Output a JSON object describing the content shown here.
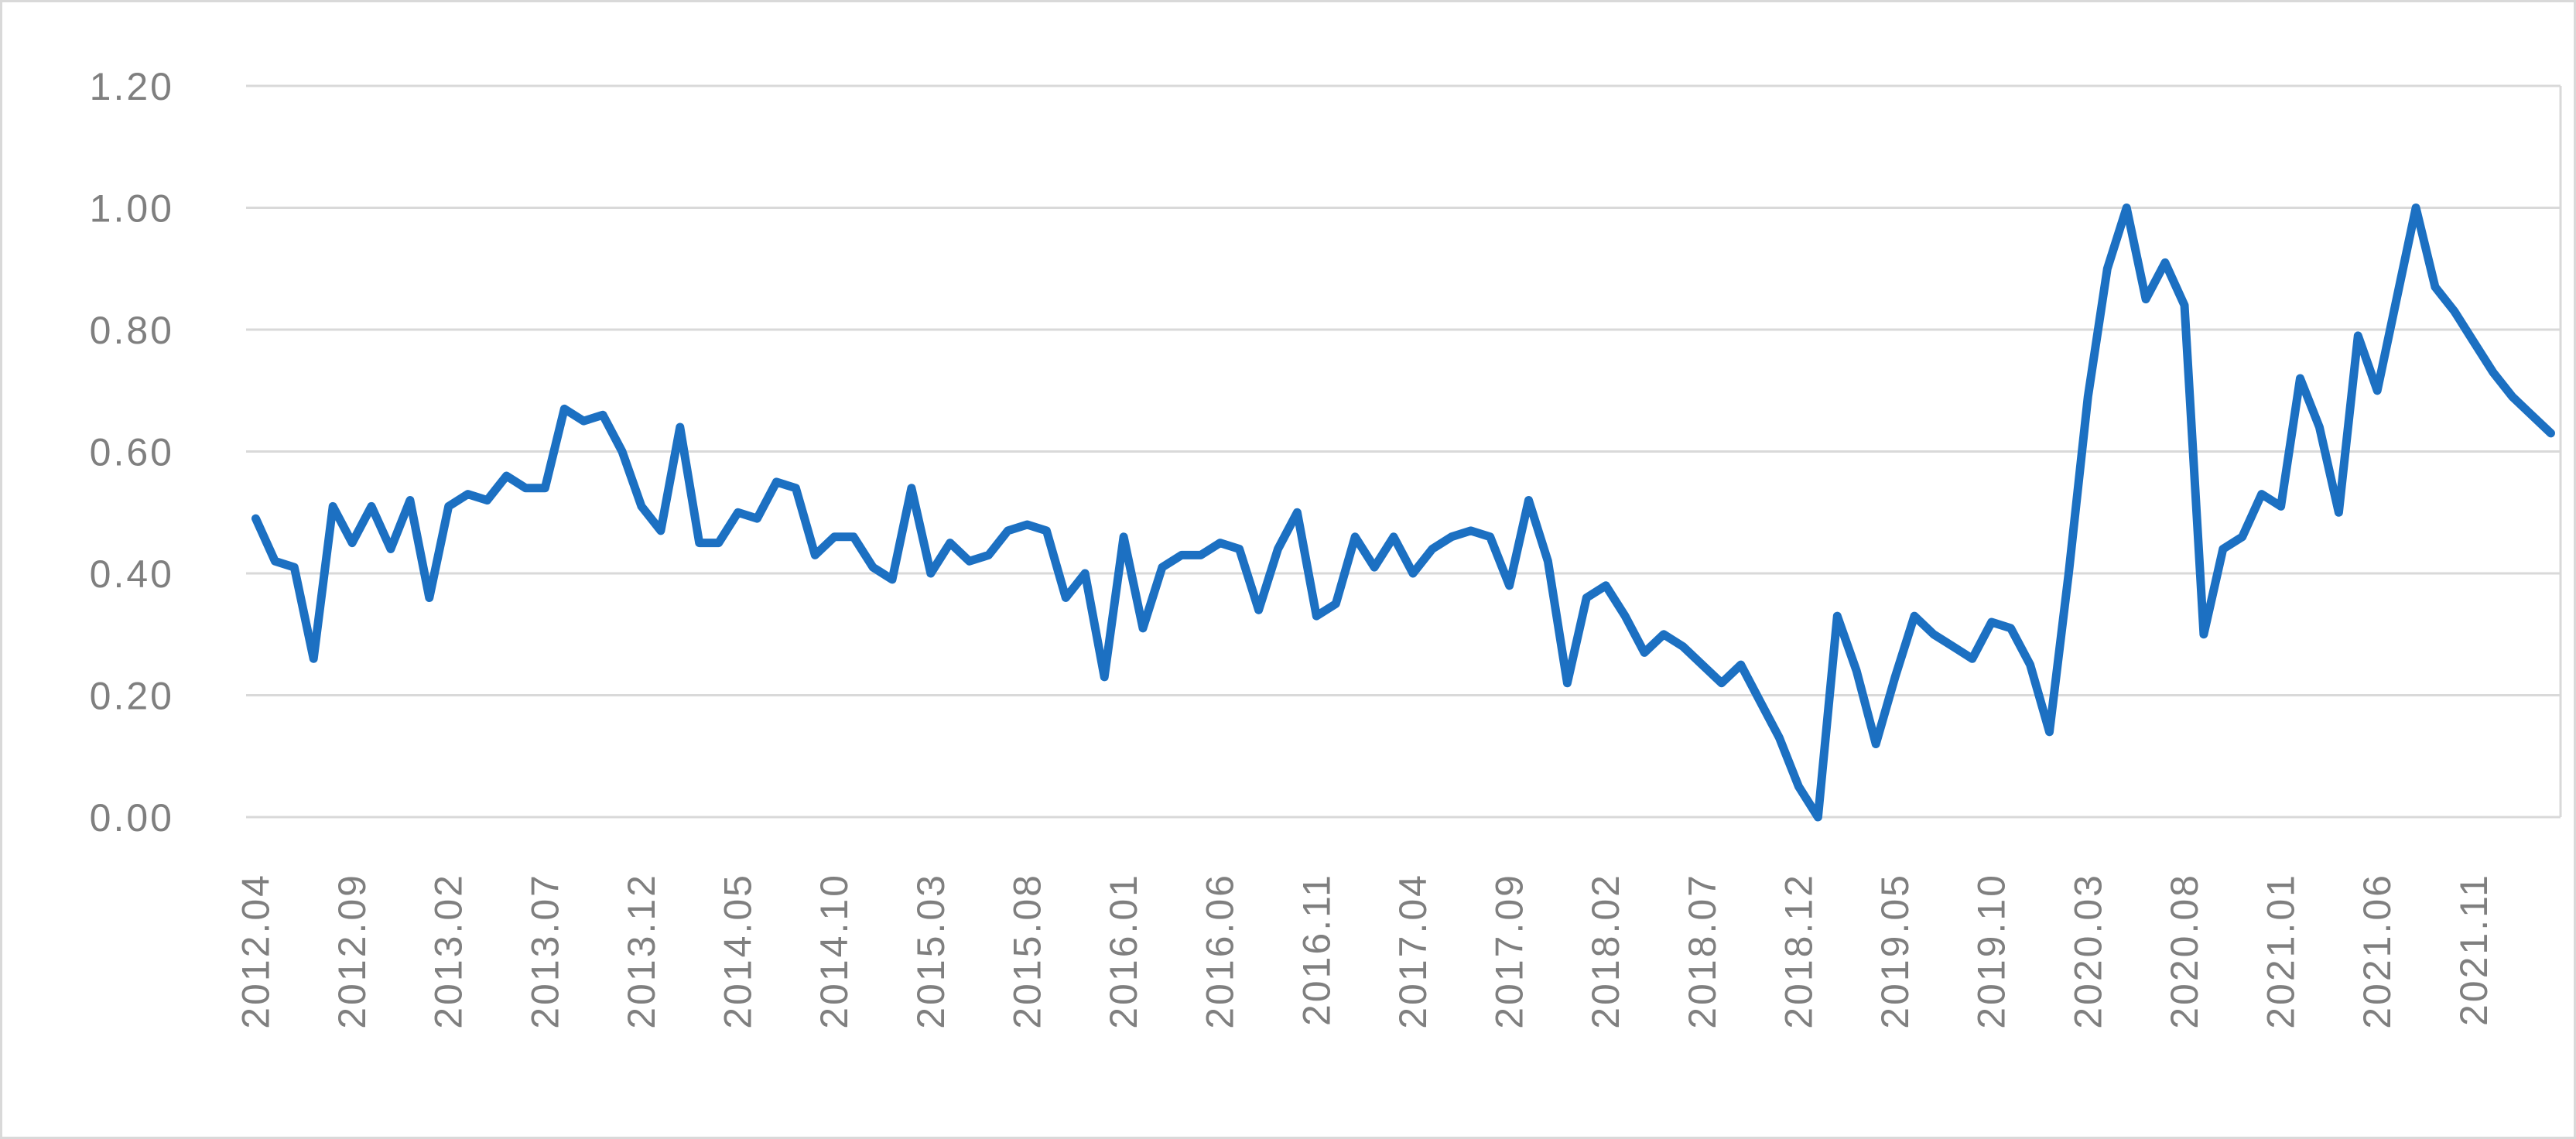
{
  "chart_data": {
    "type": "line",
    "title": "",
    "xlabel": "",
    "ylabel": "",
    "legend": "none",
    "grid": "horizontal",
    "ylim": [
      0.0,
      1.2
    ],
    "y_tick_step": 0.2,
    "y_tick_labels": [
      "0.00",
      "0.20",
      "0.40",
      "0.60",
      "0.80",
      "1.00",
      "1.20"
    ],
    "x_tick_every": 5,
    "x_tick_labels": [
      "2012.04",
      "2012.09",
      "2013.02",
      "2013.07",
      "2013.12",
      "2014.05",
      "2014.10",
      "2015.03",
      "2015.08",
      "2016.01",
      "2016.06",
      "2016.11",
      "2017.04",
      "2017.09",
      "2018.02",
      "2018.07",
      "2018.12",
      "2019.05",
      "2019.10",
      "2020.03",
      "2020.08",
      "2021.01",
      "2021.06",
      "2021.11"
    ],
    "x": [
      "2012.04",
      "2012.05",
      "2012.06",
      "2012.07",
      "2012.08",
      "2012.09",
      "2012.10",
      "2012.11",
      "2012.12",
      "2013.01",
      "2013.02",
      "2013.03",
      "2013.04",
      "2013.05",
      "2013.06",
      "2013.07",
      "2013.08",
      "2013.09",
      "2013.10",
      "2013.11",
      "2013.12",
      "2014.01",
      "2014.02",
      "2014.03",
      "2014.04",
      "2014.05",
      "2014.06",
      "2014.07",
      "2014.08",
      "2014.09",
      "2014.10",
      "2014.11",
      "2014.12",
      "2015.01",
      "2015.02",
      "2015.03",
      "2015.04",
      "2015.05",
      "2015.06",
      "2015.07",
      "2015.08",
      "2015.09",
      "2015.10",
      "2015.11",
      "2015.12",
      "2016.01",
      "2016.02",
      "2016.03",
      "2016.04",
      "2016.05",
      "2016.06",
      "2016.07",
      "2016.08",
      "2016.09",
      "2016.10",
      "2016.11",
      "2016.12",
      "2017.01",
      "2017.02",
      "2017.03",
      "2017.04",
      "2017.05",
      "2017.06",
      "2017.07",
      "2017.08",
      "2017.09",
      "2017.10",
      "2017.11",
      "2017.12",
      "2018.01",
      "2018.02",
      "2018.03",
      "2018.04",
      "2018.05",
      "2018.06",
      "2018.07",
      "2018.08",
      "2018.09",
      "2018.10",
      "2018.11",
      "2018.12",
      "2019.01",
      "2019.02",
      "2019.03",
      "2019.04",
      "2019.05",
      "2019.06",
      "2019.07",
      "2019.08",
      "2019.09",
      "2019.10",
      "2019.11",
      "2019.12",
      "2020.01",
      "2020.02",
      "2020.03",
      "2020.04",
      "2020.05",
      "2020.06",
      "2020.07",
      "2020.08",
      "2020.09",
      "2020.10",
      "2020.11",
      "2020.12",
      "2021.01",
      "2021.02",
      "2021.03",
      "2021.04",
      "2021.05",
      "2021.06",
      "2021.07",
      "2021.08",
      "2021.09",
      "2021.10",
      "2021.11",
      "2021.12",
      "2022.01",
      "2022.02",
      "2022.03"
    ],
    "values": [
      0.49,
      0.42,
      0.41,
      0.26,
      0.51,
      0.45,
      0.51,
      0.44,
      0.52,
      0.36,
      0.51,
      0.53,
      0.52,
      0.56,
      0.54,
      0.54,
      0.67,
      0.65,
      0.66,
      0.6,
      0.51,
      0.47,
      0.64,
      0.45,
      0.45,
      0.5,
      0.49,
      0.55,
      0.54,
      0.43,
      0.46,
      0.46,
      0.41,
      0.39,
      0.54,
      0.4,
      0.45,
      0.42,
      0.43,
      0.47,
      0.48,
      0.47,
      0.36,
      0.4,
      0.23,
      0.46,
      0.31,
      0.41,
      0.43,
      0.43,
      0.45,
      0.44,
      0.34,
      0.44,
      0.5,
      0.33,
      0.35,
      0.46,
      0.41,
      0.46,
      0.4,
      0.44,
      0.46,
      0.47,
      0.46,
      0.38,
      0.52,
      0.42,
      0.22,
      0.36,
      0.38,
      0.33,
      0.27,
      0.3,
      0.28,
      0.25,
      0.22,
      0.25,
      0.19,
      0.13,
      0.05,
      0.0,
      0.33,
      0.24,
      0.12,
      0.23,
      0.33,
      0.3,
      0.28,
      0.26,
      0.32,
      0.31,
      0.25,
      0.14,
      0.4,
      0.69,
      0.9,
      1.0,
      0.85,
      0.91,
      0.84,
      0.3,
      0.44,
      0.46,
      0.53,
      0.51,
      0.72,
      0.64,
      0.5,
      0.79,
      0.7,
      0.85,
      1.0,
      0.87,
      0.83,
      0.78,
      0.73,
      0.69,
      0.66,
      0.63
    ],
    "line_color": "#1C70C2",
    "line_width": 11,
    "gridline_color": "#D9D9D9",
    "plot_border_color": "#D9D9D9",
    "tick_label_color": "#7F7F7F",
    "background_color": "#FFFFFF"
  }
}
